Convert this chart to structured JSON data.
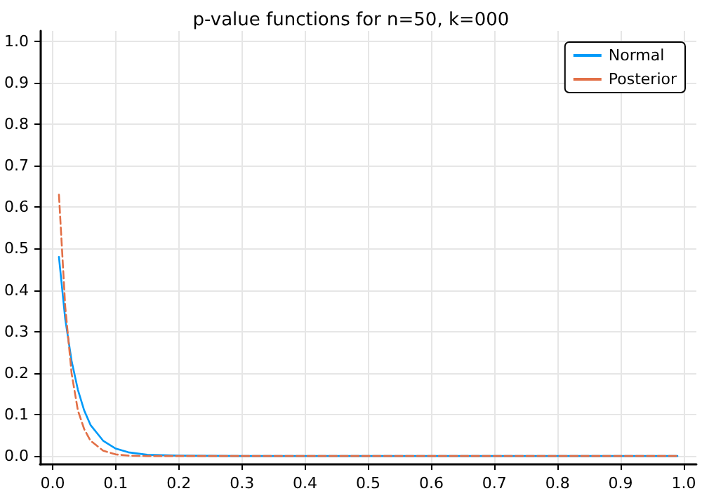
{
  "chart_data": {
    "type": "line",
    "title": "p-value functions for n=50, k=000",
    "x": [
      0.01,
      0.02,
      0.03,
      0.04,
      0.05,
      0.06,
      0.08,
      0.1,
      0.12,
      0.15,
      0.2,
      0.3,
      0.4,
      0.5,
      0.6,
      0.7,
      0.8,
      0.9,
      0.99
    ],
    "series": [
      {
        "name": "Normal",
        "color": "#009af9",
        "line_style": "solid",
        "values": [
          0.48,
          0.33,
          0.23,
          0.16,
          0.11,
          0.075,
          0.037,
          0.018,
          0.009,
          0.003,
          0.001,
          0,
          0,
          0,
          0,
          0,
          0,
          0,
          0
        ]
      },
      {
        "name": "Posterior",
        "color": "#e26f46",
        "line_style": "dashed",
        "values": [
          0.63,
          0.36,
          0.2,
          0.11,
          0.065,
          0.037,
          0.013,
          0.004,
          0.001,
          0,
          0,
          0,
          0,
          0,
          0,
          0,
          0,
          0,
          0
        ]
      }
    ],
    "xlim": [
      -0.02,
      1.02
    ],
    "xticks": [
      {
        "value": 0,
        "label": "0.0"
      },
      0.1,
      0.2,
      0.3,
      0.4,
      0.5,
      0.6,
      0.7,
      0.8,
      0.9,
      {
        "value": 1,
        "label": "1.0"
      }
    ],
    "ylim": [
      -0.02,
      1.025
    ],
    "yticks": [
      {
        "value": 0,
        "label": "0.0"
      },
      0.1,
      0.2,
      0.3,
      0.4,
      0.5,
      0.6,
      0.7,
      0.8,
      0.9,
      {
        "value": 1,
        "label": "1.0"
      }
    ],
    "grid": true,
    "legend": "top right",
    "marker": "none"
  }
}
